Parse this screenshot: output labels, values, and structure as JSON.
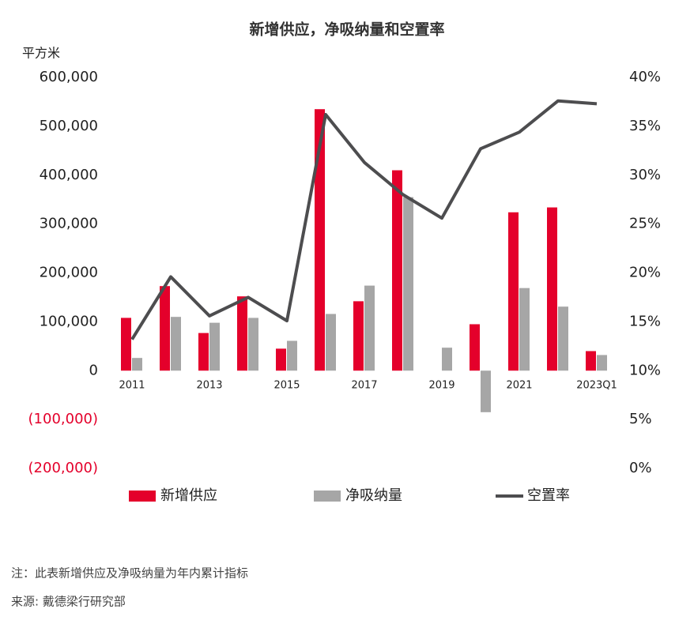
{
  "chart_data": {
    "type": "bar",
    "title": "新增供应，净吸纳量和空置率",
    "y_label": "平方米",
    "categories": [
      "2011",
      null,
      "2013",
      null,
      "2015",
      null,
      "2017",
      null,
      "2019",
      null,
      "2021",
      null,
      "2023Q1"
    ],
    "series": [
      {
        "name": "新增供应",
        "color": "#e4002b",
        "type": "bar",
        "values": [
          108000,
          173000,
          77000,
          152000,
          45000,
          535000,
          142000,
          410000,
          null,
          95000,
          324000,
          334000,
          40000
        ]
      },
      {
        "name": "净吸纳量",
        "color": "#a6a6a6",
        "type": "bar",
        "values": [
          26000,
          110000,
          98000,
          108000,
          61000,
          116000,
          174000,
          355000,
          47000,
          -85000,
          169000,
          131000,
          32000
        ]
      },
      {
        "name": "空置率",
        "color": "#4d4d4f",
        "type": "line",
        "axis": "y2",
        "values": [
          13.2,
          19.6,
          15.6,
          17.5,
          15.1,
          36.2,
          31.3,
          28.0,
          25.6,
          32.7,
          34.4,
          37.6,
          37.3
        ]
      }
    ],
    "ylim": [
      -200000,
      600000
    ],
    "yticks": [
      {
        "value": -200000,
        "label": "(200,000)"
      },
      {
        "value": -100000,
        "label": "(100,000)"
      },
      0,
      {
        "value": 100000,
        "label": "100,000"
      },
      {
        "value": 200000,
        "label": "200,000"
      },
      {
        "value": 300000,
        "label": "300,000"
      },
      {
        "value": 400000,
        "label": "400,000"
      },
      {
        "value": 500000,
        "label": "500,000"
      },
      {
        "value": 600000,
        "label": "600,000"
      }
    ],
    "negative_tick_color": "#e4002b",
    "y2lim": [
      0,
      40
    ],
    "y2ticks": [
      {
        "value": 0,
        "label": "0%"
      },
      {
        "value": 5,
        "label": "5%"
      },
      {
        "value": 10,
        "label": "10%"
      },
      {
        "value": 15,
        "label": "15%"
      },
      {
        "value": 20,
        "label": "20%"
      },
      {
        "value": 25,
        "label": "25%"
      },
      {
        "value": 30,
        "label": "30%"
      },
      {
        "value": 35,
        "label": "35%"
      },
      {
        "value": 40,
        "label": "40%"
      }
    ],
    "grid": false,
    "legend": "bottom",
    "notes": [
      "注：此表新增供应及净吸纳量为年内累计指标",
      "来源: 戴德梁行研究部"
    ]
  }
}
